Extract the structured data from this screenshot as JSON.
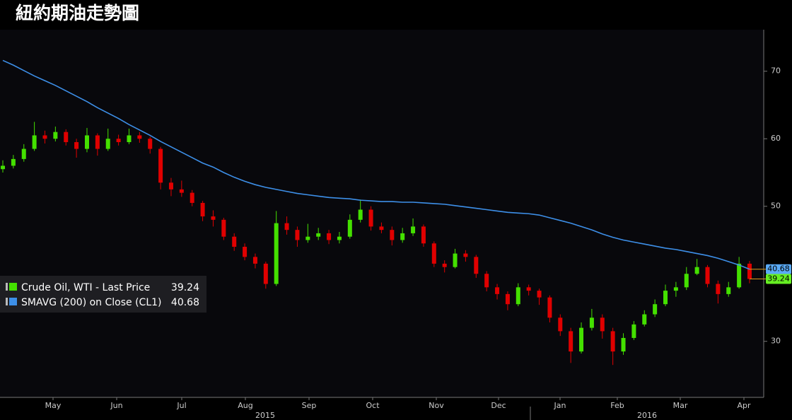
{
  "chart_data": {
    "type": "candlestick",
    "title": "紐約期油走勢圖",
    "candles": {
      "name": "Crude Oil, WTI - Last Price",
      "up_color": "#44e000",
      "down_color": "#e00000",
      "open": [
        55.5,
        56,
        57,
        58.5,
        60.5,
        60,
        61,
        59.5,
        58.5,
        60.5,
        58.5,
        60,
        59.5,
        60.5,
        60,
        58.5,
        53.5,
        52.5,
        52,
        50.5,
        48.5,
        48,
        45.5,
        44,
        42.5,
        41.5,
        38.5,
        47.5,
        46.5,
        45,
        45.5,
        46,
        45,
        45.5,
        48,
        49.5,
        47,
        46.5,
        45,
        46,
        47,
        44.5,
        41.5,
        41,
        43,
        42.5,
        40,
        38,
        37,
        35.5,
        38,
        37.5,
        36.5,
        33.5,
        31.5,
        28.5,
        32,
        33.5,
        31.5,
        28.5,
        30.5,
        32.5,
        34,
        35.5,
        37.5,
        38,
        40,
        41,
        38.5,
        37,
        38,
        41.5
      ],
      "high": [
        56.8,
        57.6,
        59.2,
        62.5,
        61.2,
        61.8,
        61.4,
        60,
        61.6,
        60.8,
        61.5,
        60.6,
        61.5,
        61,
        60.3,
        58.8,
        54.2,
        53.8,
        52.4,
        50.8,
        49.4,
        48.3,
        46,
        44.5,
        43,
        41.8,
        49.3,
        48.5,
        47,
        47.4,
        46.8,
        46.5,
        46.2,
        48.8,
        51,
        50,
        47.6,
        47,
        46.8,
        48.2,
        47.3,
        44.8,
        42,
        43.7,
        43.5,
        42.8,
        40.4,
        38.5,
        37.4,
        38.6,
        38.4,
        37.8,
        36.8,
        34,
        32,
        32.8,
        34.8,
        34,
        32,
        31.2,
        33,
        34.6,
        36.2,
        38.4,
        38.8,
        41,
        42.2,
        41.3,
        39,
        38.8,
        42.5,
        41.9
      ],
      "low": [
        55,
        55.6,
        56.6,
        58.2,
        59.3,
        59.6,
        59,
        57.2,
        58,
        57.5,
        58.2,
        59,
        59.2,
        59.4,
        57.8,
        52.5,
        51.5,
        51.4,
        50,
        47.8,
        47,
        45,
        43.4,
        42,
        40.8,
        37.8,
        38.2,
        45.8,
        44,
        44.6,
        45,
        44.4,
        44.5,
        45.2,
        47.6,
        46.4,
        46,
        44.2,
        44.6,
        45.6,
        44,
        41,
        40.2,
        40.8,
        41.8,
        39.4,
        37.4,
        36.2,
        34.6,
        35.2,
        36.8,
        35.4,
        32.8,
        30.8,
        26.8,
        28.2,
        31.6,
        30.4,
        26.5,
        28,
        30.2,
        32.2,
        33.6,
        35.2,
        36.6,
        37.6,
        39.8,
        38,
        35.6,
        36.6,
        37.8,
        38.6
      ],
      "close": [
        56,
        57,
        58.5,
        60.5,
        60,
        61,
        59.5,
        58.5,
        60.5,
        58.5,
        60,
        59.5,
        60.5,
        60,
        58.5,
        53.5,
        52.5,
        52,
        50.5,
        48.5,
        48,
        45.5,
        44,
        42.5,
        41.5,
        38.5,
        47.5,
        46.5,
        45,
        45.5,
        46,
        45,
        45.5,
        48,
        49.5,
        47,
        46.5,
        45,
        46,
        47,
        44.5,
        41.5,
        41,
        43,
        42.5,
        40,
        38,
        37,
        35.5,
        38,
        37.5,
        36.5,
        33.5,
        31.5,
        28.5,
        32,
        33.5,
        31.5,
        28.5,
        30.5,
        32.5,
        34,
        35.5,
        37.5,
        38,
        40,
        41,
        38.5,
        37,
        38,
        41.5,
        39.24
      ]
    },
    "lines": [
      {
        "name": "SMAVG (200) on Close (CL1)",
        "color": "#3d8fe8",
        "values": [
          71.6,
          70.9,
          70.1,
          69.3,
          68.6,
          67.9,
          67.1,
          66.3,
          65.5,
          64.6,
          63.8,
          63.0,
          62.1,
          61.3,
          60.5,
          59.6,
          58.8,
          58.0,
          57.2,
          56.4,
          55.8,
          55.0,
          54.3,
          53.7,
          53.2,
          52.8,
          52.5,
          52.2,
          51.9,
          51.7,
          51.5,
          51.3,
          51.2,
          51.1,
          50.9,
          50.8,
          50.7,
          50.7,
          50.6,
          50.6,
          50.5,
          50.4,
          50.3,
          50.1,
          49.9,
          49.7,
          49.5,
          49.3,
          49.1,
          49.0,
          48.9,
          48.7,
          48.3,
          47.9,
          47.5,
          47.0,
          46.5,
          45.9,
          45.4,
          45.0,
          44.7,
          44.4,
          44.1,
          43.8,
          43.6,
          43.3,
          43.0,
          42.7,
          42.3,
          41.8,
          41.3,
          40.68
        ]
      }
    ],
    "months": [
      "May",
      "Jun",
      "Jul",
      "Aug",
      "Sep",
      "Oct",
      "Nov",
      "Dec",
      "Jan",
      "Feb",
      "Mar",
      "Apr"
    ],
    "years": [
      "2015",
      "2016"
    ],
    "ylim": [
      21.7,
      76.15
    ],
    "yticks": [
      30,
      50,
      60,
      70
    ]
  }
}
